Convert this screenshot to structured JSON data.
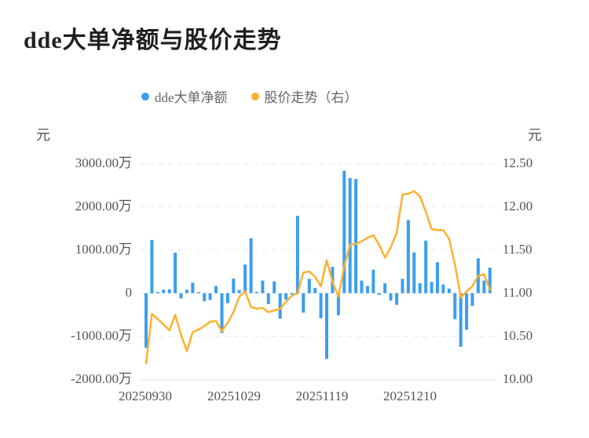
{
  "title": "dde大单净额与股价走势",
  "legend": {
    "items": [
      {
        "label": "dde大单净额",
        "color": "#3B9EEE"
      },
      {
        "label": "股价走势（右）",
        "color": "#FFB02E"
      }
    ]
  },
  "axes": {
    "left": {
      "unit": "元",
      "ticks": [
        "3000.00万",
        "2000.00万",
        "1000.00万",
        "0",
        "-1000.00万",
        "-2000.00万"
      ]
    },
    "right": {
      "unit": "元",
      "ticks": [
        "12.50",
        "12.00",
        "11.50",
        "11.00",
        "10.50",
        "10.00"
      ]
    },
    "x": {
      "ticks": [
        "20250930",
        "20251029",
        "20251119",
        "20251210"
      ]
    }
  },
  "colors": {
    "bar": "#3B9EEE",
    "line": "#FFB02E",
    "grid": "#E9E9E9",
    "axis_text": "#555555",
    "title_text": "#1F1F1F"
  },
  "chart_data": {
    "type": "combo",
    "title": "dde大单净额与股价走势",
    "num_points": 60,
    "x_tick_labels": [
      "20250930",
      "20251029",
      "20251119",
      "20251210"
    ],
    "x_tick_indices": [
      0,
      15,
      30,
      45
    ],
    "left_axis": {
      "unit": "元",
      "min_wan": -2000,
      "max_wan": 3000,
      "tick_step_wan": 1000
    },
    "right_axis": {
      "unit": "元",
      "min": 10.0,
      "max": 12.5,
      "tick_step": 0.5
    },
    "grid": {
      "horizontal": true,
      "style": "dashed"
    },
    "legend_position": "top",
    "series": [
      {
        "name": "dde大单净额",
        "type": "bar",
        "axis": "left",
        "unit": "万",
        "color": "#3B9EEE",
        "values": [
          -1265,
          1230,
          30,
          80,
          90,
          935,
          -120,
          80,
          240,
          25,
          -185,
          -160,
          165,
          -920,
          -233,
          335,
          70,
          665,
          1270,
          30,
          290,
          -250,
          270,
          -590,
          -150,
          -30,
          1790,
          -450,
          330,
          120,
          -580,
          -1520,
          610,
          -510,
          2830,
          2660,
          2640,
          290,
          165,
          545,
          -40,
          230,
          -170,
          -270,
          330,
          1690,
          940,
          230,
          1215,
          260,
          715,
          200,
          105,
          -600,
          -1240,
          -845,
          -295,
          805,
          290,
          590
        ]
      },
      {
        "name": "股价走势（右）",
        "type": "line",
        "axis": "right",
        "unit": "元",
        "color": "#FFB02E",
        "values": [
          10.19,
          10.76,
          10.7,
          10.64,
          10.57,
          10.75,
          10.52,
          10.33,
          10.55,
          10.58,
          10.62,
          10.67,
          10.68,
          10.56,
          10.66,
          10.78,
          10.96,
          11.02,
          10.84,
          10.82,
          10.83,
          10.78,
          10.8,
          10.82,
          10.9,
          10.97,
          11.0,
          11.24,
          11.25,
          11.19,
          11.08,
          11.38,
          11.13,
          10.96,
          11.31,
          11.56,
          11.57,
          11.6,
          11.64,
          11.67,
          11.56,
          11.41,
          11.53,
          11.7,
          12.14,
          12.15,
          12.18,
          12.12,
          11.94,
          11.74,
          11.73,
          11.73,
          11.63,
          11.33,
          10.95,
          11.02,
          11.08,
          11.2,
          11.22,
          11.04
        ]
      }
    ]
  }
}
